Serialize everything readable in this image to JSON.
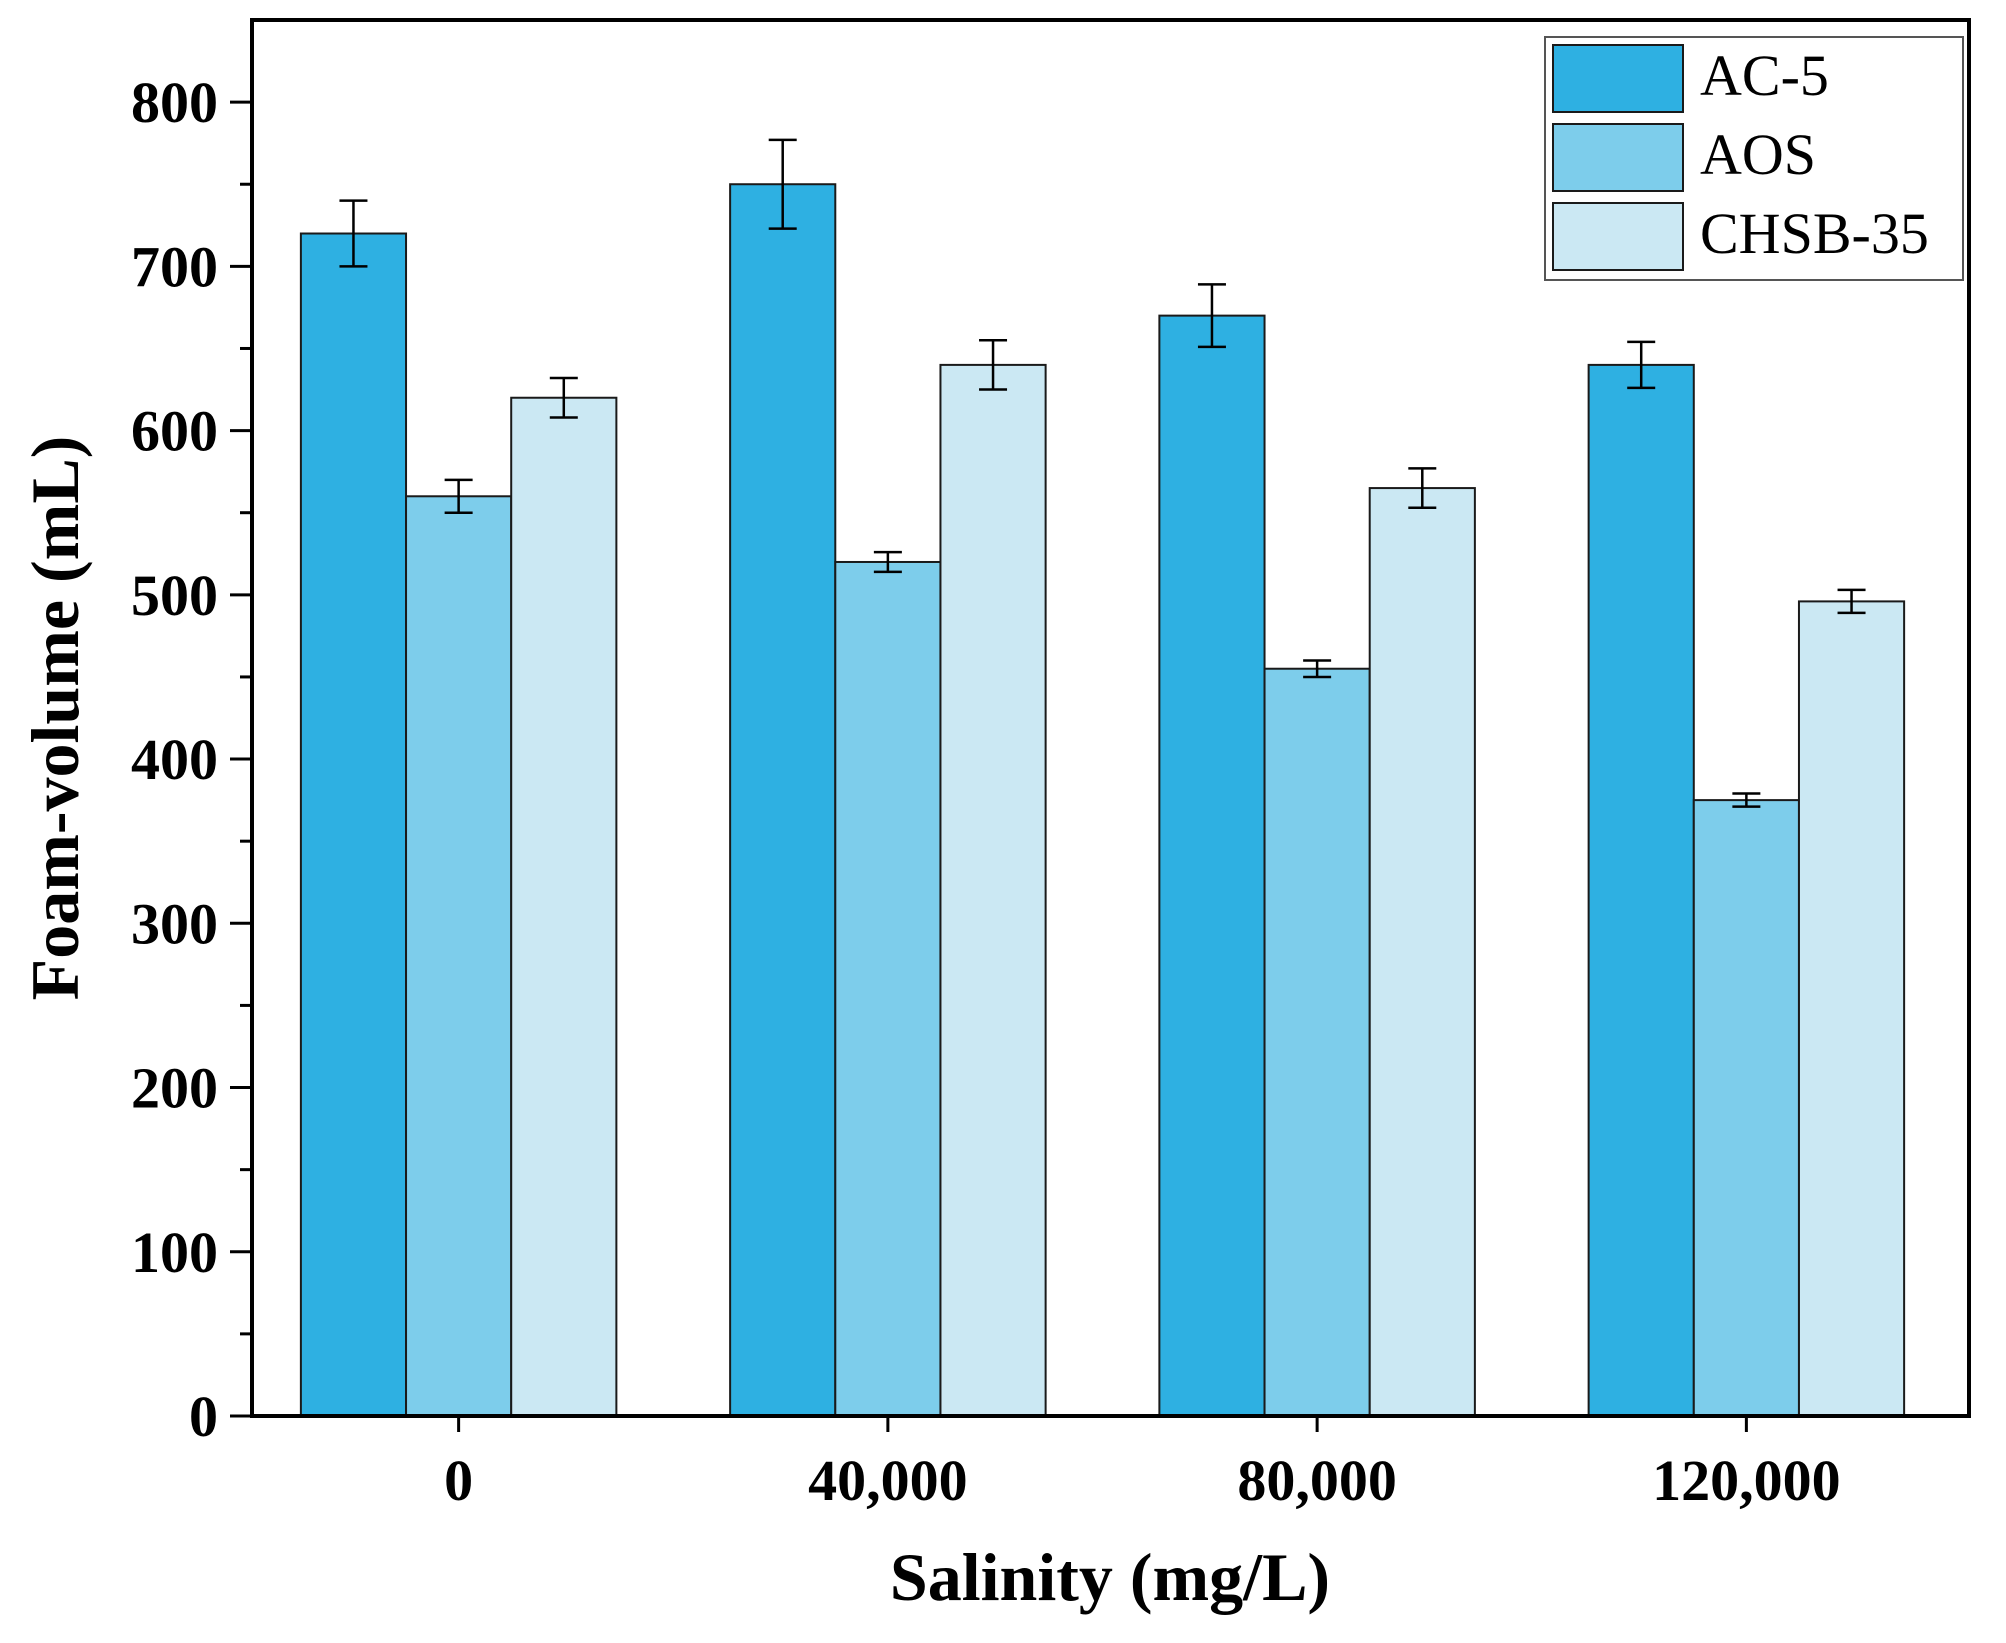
{
  "chart_data": {
    "type": "bar",
    "title": "",
    "xlabel": "Salinity (mg/L)",
    "ylabel": "Foam-volume (mL)",
    "categories": [
      "0",
      "40,000",
      "80,000",
      "120,000"
    ],
    "ylim": [
      0,
      850
    ],
    "yticks": [
      0,
      100,
      200,
      300,
      400,
      500,
      600,
      700,
      800
    ],
    "legend_position": "top-right",
    "series": [
      {
        "name": "AC-5",
        "color": "#2EB0E2",
        "values": [
          720,
          750,
          670,
          640
        ],
        "errors": [
          20,
          27,
          19,
          14
        ]
      },
      {
        "name": "AOS",
        "color": "#7DCDEB",
        "values": [
          560,
          520,
          455,
          375
        ],
        "errors": [
          10,
          6,
          5,
          4
        ]
      },
      {
        "name": "CHSB-35",
        "color": "#CBE8F3",
        "values": [
          620,
          640,
          565,
          496
        ],
        "errors": [
          12,
          15,
          12,
          7
        ]
      }
    ]
  }
}
